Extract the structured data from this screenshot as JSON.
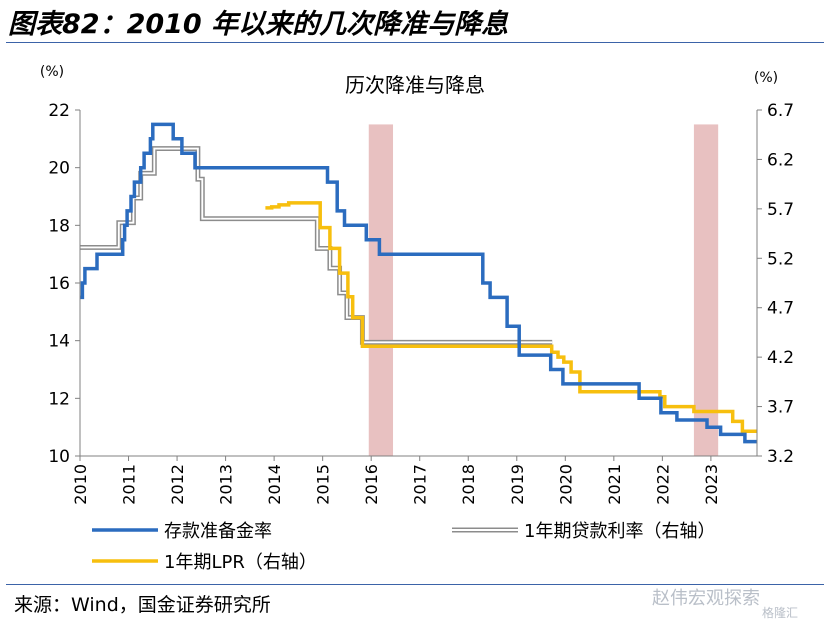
{
  "figure": {
    "title": "图表82：2010 年以来的几次降准与降息",
    "source": "来源：Wind，国金证券研究所",
    "watermark": "赵伟宏观探索",
    "watermark_sub": "格隆汇"
  },
  "chart_data": {
    "type": "line",
    "title": "历次降准与降息",
    "y_unit_left": "(%)",
    "y_unit_right": "(%)",
    "xlim": [
      2010,
      2023.95
    ],
    "ylim_left": [
      10,
      22
    ],
    "ylim_right": [
      3.2,
      6.7
    ],
    "x_ticks": [
      "2010",
      "2011",
      "2012",
      "2013",
      "2014",
      "2015",
      "2016",
      "2017",
      "2018",
      "2019",
      "2020",
      "2021",
      "2022",
      "2023"
    ],
    "y_ticks_left": [
      "10",
      "12",
      "14",
      "16",
      "18",
      "20",
      "22"
    ],
    "y_ticks_right": [
      "3.2",
      "3.7",
      "4.2",
      "4.7",
      "5.2",
      "5.7",
      "6.2",
      "6.7"
    ],
    "grid": false,
    "legend_position": "bottom",
    "highlight_bands": [
      {
        "x_start": 2015.95,
        "x_end": 2016.45,
        "color": "#e8c1c1"
      },
      {
        "x_start": 2022.65,
        "x_end": 2023.15,
        "color": "#e8c1c1"
      }
    ],
    "series": [
      {
        "name": "存款准备金率",
        "axis": "left",
        "color": "#2b6cbf",
        "width": 3.5,
        "points": [
          [
            2010.0,
            15.5
          ],
          [
            2010.05,
            16.0
          ],
          [
            2010.1,
            16.5
          ],
          [
            2010.35,
            17.0
          ],
          [
            2010.88,
            17.5
          ],
          [
            2010.92,
            18.0
          ],
          [
            2010.97,
            18.5
          ],
          [
            2011.05,
            19.0
          ],
          [
            2011.12,
            19.5
          ],
          [
            2011.25,
            20.0
          ],
          [
            2011.32,
            20.5
          ],
          [
            2011.45,
            21.0
          ],
          [
            2011.5,
            21.5
          ],
          [
            2011.92,
            21.0
          ],
          [
            2012.1,
            20.5
          ],
          [
            2012.37,
            20.0
          ],
          [
            2015.1,
            19.5
          ],
          [
            2015.3,
            18.5
          ],
          [
            2015.45,
            18.0
          ],
          [
            2015.9,
            17.5
          ],
          [
            2016.17,
            17.0
          ],
          [
            2018.3,
            16.0
          ],
          [
            2018.45,
            15.5
          ],
          [
            2018.8,
            14.5
          ],
          [
            2019.05,
            13.5
          ],
          [
            2019.7,
            13.0
          ],
          [
            2019.95,
            12.5
          ],
          [
            2021.52,
            12.0
          ],
          [
            2021.97,
            11.5
          ],
          [
            2022.3,
            11.25
          ],
          [
            2022.92,
            11.0
          ],
          [
            2023.2,
            10.75
          ],
          [
            2023.7,
            10.5
          ],
          [
            2023.95,
            10.5
          ]
        ]
      },
      {
        "name": "1年期贷款利率（右轴）",
        "axis": "right",
        "color": "#a9a9a9",
        "width": 3.5,
        "outline": true,
        "points": [
          [
            2010.0,
            5.31
          ],
          [
            2010.8,
            5.56
          ],
          [
            2011.1,
            5.81
          ],
          [
            2011.25,
            6.06
          ],
          [
            2011.53,
            6.31
          ],
          [
            2012.43,
            6.0
          ],
          [
            2012.52,
            5.6
          ],
          [
            2014.89,
            5.3
          ],
          [
            2015.15,
            5.1
          ],
          [
            2015.35,
            4.85
          ],
          [
            2015.5,
            4.6
          ],
          [
            2015.82,
            4.35
          ],
          [
            2019.73,
            4.35
          ]
        ]
      },
      {
        "name": "1年期LPR（右轴）",
        "axis": "right",
        "color": "#f7bf0e",
        "width": 3.5,
        "points": [
          [
            2013.82,
            5.71
          ],
          [
            2013.95,
            5.72
          ],
          [
            2014.1,
            5.74
          ],
          [
            2014.3,
            5.76
          ],
          [
            2014.75,
            5.76
          ],
          [
            2014.85,
            5.76
          ],
          [
            2014.95,
            5.51
          ],
          [
            2015.15,
            5.3
          ],
          [
            2015.35,
            5.05
          ],
          [
            2015.52,
            4.81
          ],
          [
            2015.62,
            4.6
          ],
          [
            2015.82,
            4.31
          ],
          [
            2016.5,
            4.31
          ],
          [
            2018.0,
            4.31
          ],
          [
            2019.65,
            4.31
          ],
          [
            2019.72,
            4.25
          ],
          [
            2019.85,
            4.2
          ],
          [
            2019.97,
            4.15
          ],
          [
            2020.12,
            4.05
          ],
          [
            2020.3,
            3.85
          ],
          [
            2021.95,
            3.8
          ],
          [
            2022.05,
            3.7
          ],
          [
            2022.65,
            3.65
          ],
          [
            2023.45,
            3.55
          ],
          [
            2023.65,
            3.45
          ],
          [
            2023.95,
            3.45
          ]
        ]
      }
    ]
  }
}
